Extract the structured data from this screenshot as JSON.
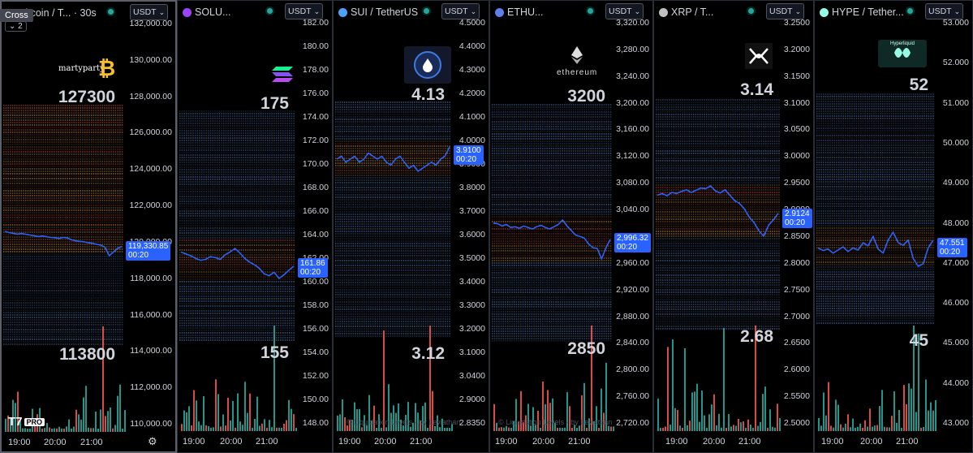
{
  "crosshair_label": "Cross",
  "layout_count_label": "2",
  "x_axis_labels": [
    "19:00",
    "20:00",
    "21:00"
  ],
  "panels": [
    {
      "id": "btc",
      "title": "Bitcoin / T... · 30s",
      "unit": "USDT",
      "coin_color": "#f7931a",
      "y_ticks": [
        "132,000.00",
        "130,000.00",
        "128,000.00",
        "126,000.00",
        "124,000.00",
        "122,000.00",
        "120,000.00",
        "118,000.00",
        "116,000.00",
        "114,000.00",
        "112,000.00",
        "110,000.00"
      ],
      "last_price": "119,330.85",
      "countdown": "00:20",
      "upper_label": "127300",
      "lower_label": "113800",
      "logo_text": "martyparty",
      "logo_icon": "bitcoin-logo",
      "price_series": [
        119950,
        119900,
        119870,
        119840,
        119860,
        119830,
        119800,
        119770,
        119740,
        119760,
        119730,
        119700,
        119690,
        119660,
        119700,
        119680,
        119600,
        119560,
        119540,
        119520,
        119480,
        119460,
        119420,
        119380,
        119300,
        118950,
        119100,
        119250,
        119330
      ]
    },
    {
      "id": "sol",
      "title": "SOLU...",
      "unit": "USDT",
      "coin_color": "#9945ff",
      "y_ticks": [
        "182.00",
        "180.00",
        "178.00",
        "176.00",
        "174.00",
        "172.00",
        "170.00",
        "168.00",
        "166.00",
        "164.00",
        "162.00",
        "160.00",
        "158.00",
        "156.00",
        "154.00",
        "152.00",
        "150.00",
        "148.00"
      ],
      "last_price": "161.86",
      "countdown": "00:20",
      "upper_label": "175",
      "lower_label": "155",
      "logo_text": "",
      "logo_icon": "solana-logo",
      "price_series": [
        163.4,
        163.2,
        163.0,
        162.7,
        162.5,
        162.6,
        162.9,
        162.8,
        162.6,
        163.1,
        163.4,
        163.8,
        163.3,
        162.7,
        162.3,
        162.0,
        161.6,
        161.0,
        160.8,
        161.2,
        160.5,
        160.9,
        161.4,
        161.86
      ]
    },
    {
      "id": "sui",
      "title": "SUI / TetherUS",
      "unit": "USDT",
      "coin_color": "#4da2ff",
      "y_ticks": [
        "4.5000",
        "4.4000",
        "4.3000",
        "4.2000",
        "4.1000",
        "4.0000",
        "3.9000",
        "3.8000",
        "3.7000",
        "3.6000",
        "3.5000",
        "3.4000",
        "3.3000",
        "3.2000",
        "3.1000",
        "3.0400",
        "2.9000",
        "2.8350"
      ],
      "last_price": "3.9100",
      "countdown": "00:20",
      "upper_label": "4.13",
      "lower_label": "3.12",
      "logo_text": "",
      "logo_icon": "sui-logo",
      "price_series": [
        3.87,
        3.88,
        3.86,
        3.87,
        3.88,
        3.86,
        3.87,
        3.89,
        3.88,
        3.87,
        3.88,
        3.86,
        3.85,
        3.87,
        3.88,
        3.86,
        3.84,
        3.85,
        3.83,
        3.84,
        3.85,
        3.86,
        3.85,
        3.87,
        3.88,
        3.91
      ]
    },
    {
      "id": "eth",
      "title": "ETHU...",
      "unit": "USDT",
      "coin_color": "#627eea",
      "y_ticks": [
        "3,320.00",
        "3,280.00",
        "3,240.00",
        "3,200.00",
        "3,160.00",
        "3,120.00",
        "3,080.00",
        "3,040.00",
        "3,000.00",
        "2,960.00",
        "2,920.00",
        "2,880.00",
        "2,840.00",
        "2,800.00",
        "2,760.00",
        "2,720.00"
      ],
      "last_price": "2,996.32",
      "countdown": "00:20",
      "upper_label": "3200",
      "lower_label": "2850",
      "logo_text": "ethereum",
      "logo_icon": "ethereum-logo",
      "price_series": [
        3018,
        3017,
        3014,
        3016,
        3012,
        3013,
        3011,
        3014,
        3012,
        3010,
        3013,
        3015,
        3012,
        3010,
        3013,
        3016,
        3022,
        3014,
        3008,
        3002,
        3000,
        2998,
        2990,
        2985,
        2984,
        2970,
        2985,
        2996
      ]
    },
    {
      "id": "xrp",
      "title": "XRP / T...",
      "unit": "USDT",
      "coin_color": "#c0c0c0",
      "y_ticks": [
        "3.2500",
        "3.2000",
        "3.1500",
        "3.1000",
        "3.0500",
        "3.0000",
        "2.9500",
        "2.9000",
        "2.8500",
        "2.8000",
        "2.7500",
        "2.7000",
        "2.6500",
        "2.6000",
        "2.5500",
        "2.5000"
      ],
      "last_price": "2.9124",
      "countdown": "00:20",
      "upper_label": "3.14",
      "lower_label": "2.68",
      "logo_text": "",
      "logo_icon": "xrp-logo",
      "price_series": [
        2.945,
        2.948,
        2.944,
        2.95,
        2.948,
        2.952,
        2.955,
        2.95,
        2.954,
        2.958,
        2.957,
        2.962,
        2.953,
        2.949,
        2.955,
        2.945,
        2.935,
        2.93,
        2.92,
        2.905,
        2.895,
        2.88,
        2.87,
        2.89,
        2.9,
        2.912
      ]
    },
    {
      "id": "hype",
      "title": "HYPE / Tether...",
      "unit": "USDT",
      "coin_color": "#97fce4",
      "y_ticks": [
        "53.000",
        "52.000",
        "51.000",
        "50.000",
        "49.000",
        "48.000",
        "47.000",
        "46.000",
        "45.000",
        "44.000",
        "43.000"
      ],
      "last_price": "47.551",
      "countdown": "00:20",
      "upper_label": "52",
      "lower_label": "45",
      "logo_text": "Hyperliquid",
      "logo_icon": "hyperliquid-logo",
      "price_series": [
        47.4,
        47.35,
        47.38,
        47.3,
        47.36,
        47.42,
        47.33,
        47.4,
        47.36,
        47.5,
        47.44,
        47.62,
        47.38,
        47.3,
        47.55,
        47.7,
        47.5,
        47.45,
        47.55,
        47.2,
        47.05,
        47.1,
        47.4,
        47.55
      ]
    }
  ],
  "watermark_text": "© Liquidation Levels - by Leviathan",
  "tv_logo_text": "PRO",
  "colors": {
    "price_line": "#2962ff",
    "volume_up": "#26a69a",
    "volume_down": "#ef5350",
    "heat_blue": "#5b8fd6",
    "heat_orange": "#f0a040",
    "heat_red": "#e0503a"
  }
}
